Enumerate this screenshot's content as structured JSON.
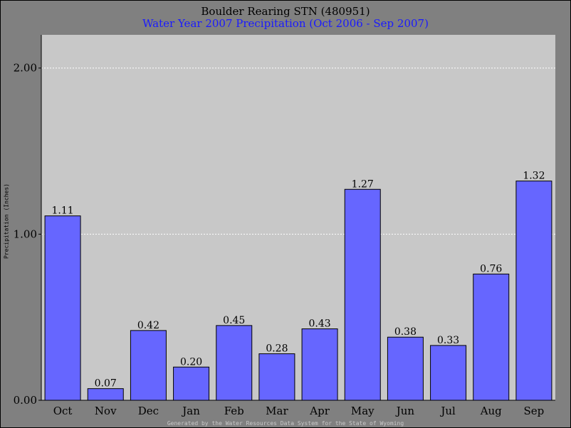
{
  "chart_data": {
    "type": "bar",
    "title": "Boulder Rearing STN (480951)",
    "subtitle": "Water Year 2007 Precipitation (Oct 2006 - Sep 2007)",
    "ylabel": "Precipitation (Inches)",
    "xlabel": "",
    "categories": [
      "Oct",
      "Nov",
      "Dec",
      "Jan",
      "Feb",
      "Mar",
      "Apr",
      "May",
      "Jun",
      "Jul",
      "Aug",
      "Sep"
    ],
    "values": [
      1.11,
      0.07,
      0.42,
      0.2,
      0.45,
      0.28,
      0.43,
      1.27,
      0.38,
      0.33,
      0.76,
      1.32
    ],
    "value_labels": [
      "1.11",
      "0.07",
      "0.42",
      "0.20",
      "0.45",
      "0.28",
      "0.43",
      "1.27",
      "0.38",
      "0.33",
      "0.76",
      "1.32"
    ],
    "yticks": [
      "0.00",
      "1.00",
      "2.00"
    ],
    "ytick_values": [
      0,
      1,
      2
    ],
    "ylim": [
      0,
      2.2
    ],
    "grid": true,
    "legend": "none",
    "colors": {
      "bar": "#6666ff",
      "plot_background": "#c8c8c8",
      "page_background": "#808080",
      "gridline": "#ffffff",
      "subtitle": "#1a1aff"
    }
  },
  "footer": "Generated by the Water Resources Data System for the State of Wyoming"
}
